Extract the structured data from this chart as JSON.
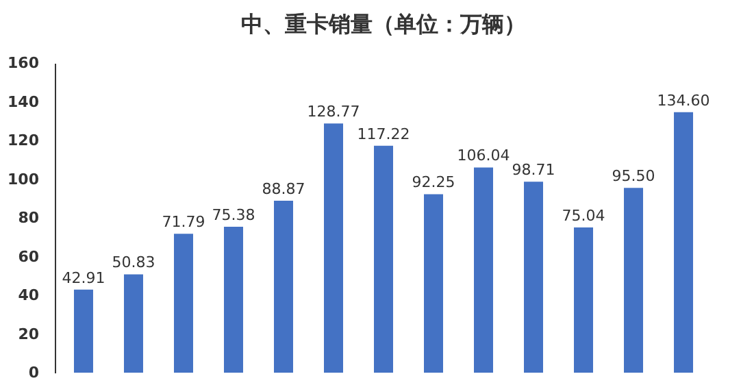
{
  "chart_data": {
    "type": "bar",
    "title": "中、重卡销量（单位：万辆）",
    "categories": [
      null,
      null,
      null,
      null,
      null,
      null,
      null,
      null,
      null,
      null,
      null,
      null,
      null
    ],
    "values": [
      42.91,
      50.83,
      71.79,
      75.38,
      88.87,
      128.77,
      117.22,
      92.25,
      106.04,
      98.71,
      75.04,
      95.5,
      134.6
    ],
    "value_labels": [
      "42.91",
      "50.83",
      "71.79",
      "75.38",
      "88.87",
      "128.77",
      "117.22",
      "92.25",
      "106.04",
      "98.71",
      "75.04",
      "95.50",
      "134.60"
    ],
    "color": "#4472c4",
    "ylim": [
      0,
      160
    ],
    "yticks": [
      0,
      20,
      40,
      60,
      80,
      100,
      120,
      140,
      160
    ],
    "grid": false,
    "tick_labels": "y"
  }
}
